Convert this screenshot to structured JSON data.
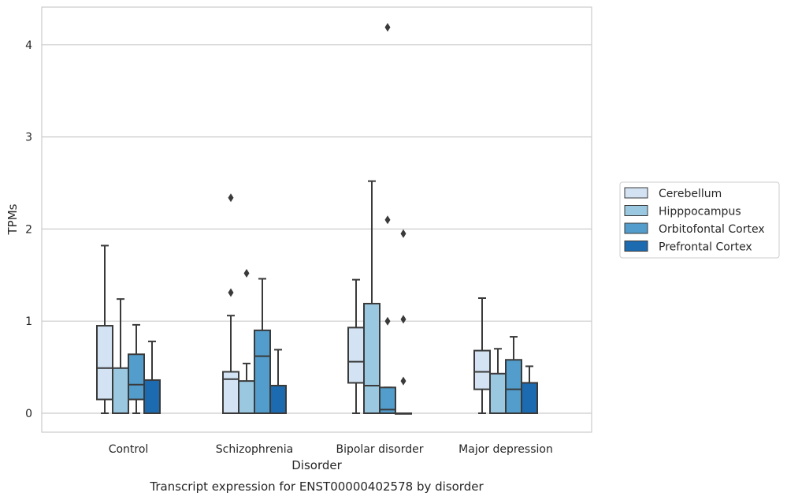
{
  "chart_data": {
    "type": "box",
    "caption": "Transcript expression for ENST00000402578 by disorder",
    "xlabel": "Disorder",
    "ylabel": "TPMs",
    "ylim": [
      -0.2,
      4.4
    ],
    "yticks": [
      0,
      1,
      2,
      3,
      4
    ],
    "categories": [
      "Control",
      "Schizophrenia",
      "Bipolar disorder",
      "Major depression"
    ],
    "grid": true,
    "legend_position": "right",
    "series": [
      {
        "name": "Cerebellum",
        "color": "#d3e3f3",
        "boxes": [
          {
            "whislo": 0.0,
            "q1": 0.15,
            "med": 0.49,
            "q3": 0.95,
            "whishi": 1.82,
            "fliers": []
          },
          {
            "whislo": 0.0,
            "q1": 0.0,
            "med": 0.37,
            "q3": 0.45,
            "whishi": 1.06,
            "fliers": [
              1.31,
              2.34
            ]
          },
          {
            "whislo": 0.0,
            "q1": 0.33,
            "med": 0.56,
            "q3": 0.93,
            "whishi": 1.45,
            "fliers": []
          },
          {
            "whislo": 0.0,
            "q1": 0.26,
            "med": 0.45,
            "q3": 0.68,
            "whishi": 1.25,
            "fliers": []
          }
        ]
      },
      {
        "name": "Hipppocampus",
        "color": "#9ac8e0",
        "boxes": [
          {
            "whislo": 0.0,
            "q1": 0.0,
            "med": 0.0,
            "q3": 0.49,
            "whishi": 1.24,
            "fliers": []
          },
          {
            "whislo": 0.0,
            "q1": 0.0,
            "med": 0.0,
            "q3": 0.35,
            "whishi": 0.54,
            "fliers": [
              1.52
            ]
          },
          {
            "whislo": 0.0,
            "q1": 0.0,
            "med": 0.3,
            "q3": 1.19,
            "whishi": 2.52,
            "fliers": []
          },
          {
            "whislo": 0.0,
            "q1": 0.0,
            "med": 0.0,
            "q3": 0.43,
            "whishi": 0.7,
            "fliers": []
          }
        ]
      },
      {
        "name": "Orbitofontal Cortex",
        "color": "#529dcc",
        "boxes": [
          {
            "whislo": 0.0,
            "q1": 0.15,
            "med": 0.31,
            "q3": 0.64,
            "whishi": 0.96,
            "fliers": []
          },
          {
            "whislo": 0.0,
            "q1": 0.0,
            "med": 0.62,
            "q3": 0.9,
            "whishi": 1.46,
            "fliers": []
          },
          {
            "whislo": 0.0,
            "q1": 0.0,
            "med": 0.04,
            "q3": 0.28,
            "whishi": 0.28,
            "fliers": [
              1.0,
              2.1,
              4.19
            ]
          },
          {
            "whislo": 0.0,
            "q1": 0.0,
            "med": 0.26,
            "q3": 0.58,
            "whishi": 0.83,
            "fliers": []
          }
        ]
      },
      {
        "name": "Prefrontal Cortex",
        "color": "#1c6aaf",
        "boxes": [
          {
            "whislo": 0.0,
            "q1": 0.0,
            "med": 0.0,
            "q3": 0.36,
            "whishi": 0.78,
            "fliers": []
          },
          {
            "whislo": 0.0,
            "q1": 0.0,
            "med": 0.0,
            "q3": 0.3,
            "whishi": 0.69,
            "fliers": []
          },
          {
            "whislo": 0.0,
            "q1": 0.0,
            "med": 0.0,
            "q3": 0.0,
            "whishi": 0.0,
            "fliers": [
              0.35,
              1.02,
              1.95
            ]
          },
          {
            "whislo": 0.0,
            "q1": 0.0,
            "med": 0.0,
            "q3": 0.33,
            "whishi": 0.51,
            "fliers": []
          }
        ]
      }
    ]
  }
}
